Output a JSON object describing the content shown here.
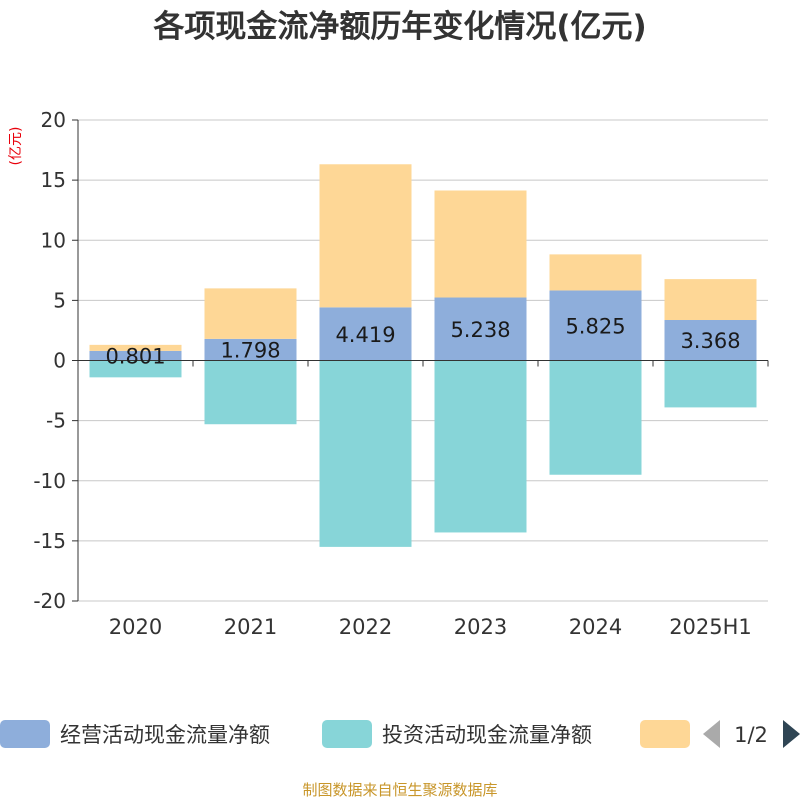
{
  "chart_data": {
    "type": "bar",
    "stacked": true,
    "title": "各项现金流净额历年变化情况(亿元)",
    "unit_label": "(亿元)",
    "categories": [
      "2020",
      "2021",
      "2022",
      "2023",
      "2024",
      "2025H1"
    ],
    "ylim": [
      -20,
      20
    ],
    "yticks": [
      "20",
      "15",
      "10",
      "5",
      "0",
      "-5",
      "-10",
      "-15",
      "-20"
    ],
    "grid": true,
    "series": [
      {
        "name": "经营活动现金流量净额",
        "color": "#8eaedb",
        "values": [
          0.801,
          1.798,
          4.419,
          5.238,
          5.825,
          3.368
        ],
        "labels": [
          "0.801",
          "1.798",
          "4.419",
          "5.238",
          "5.825",
          "3.368"
        ]
      },
      {
        "name": "投资活动现金流量净额",
        "color": "#87d5d8",
        "values": [
          -1.4,
          -5.3,
          -15.5,
          -14.3,
          -9.5,
          -3.9
        ]
      },
      {
        "name": "",
        "color": "#fed796",
        "values": [
          0.5,
          4.2,
          11.9,
          8.9,
          3.0,
          3.4
        ]
      }
    ],
    "legend": {
      "position": "bottom",
      "page": "1/2"
    }
  },
  "source": "制图数据来自恒生聚源数据库"
}
